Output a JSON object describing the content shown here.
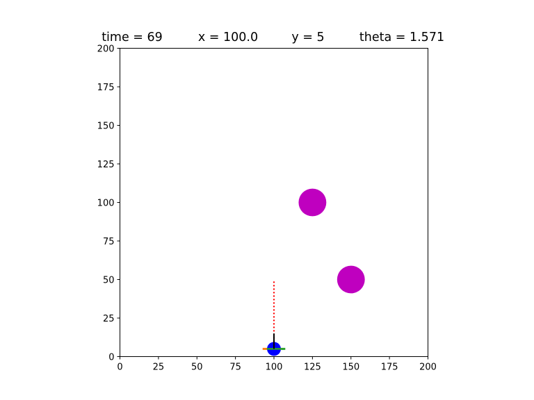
{
  "title": {
    "time": "time = 69",
    "x": "x = 100.0",
    "y": "y = 5",
    "theta": "theta = 1.571"
  },
  "chart_data": {
    "type": "scatter",
    "xlim": [
      0,
      200
    ],
    "ylim": [
      0,
      200
    ],
    "aspect": "equal",
    "grid": false,
    "x_ticks": [
      0,
      25,
      50,
      75,
      100,
      125,
      150,
      175,
      200
    ],
    "y_ticks": [
      0,
      25,
      50,
      75,
      100,
      125,
      150,
      175,
      200
    ],
    "obstacles": [
      {
        "x": 125,
        "y": 100,
        "r": 9,
        "color": "#bf00bf"
      },
      {
        "x": 150,
        "y": 50,
        "r": 9,
        "color": "#bf00bf"
      }
    ],
    "robot": {
      "x": 100,
      "y": 5,
      "r": 4.5,
      "theta": 1.571,
      "color": "#0000ff"
    },
    "sensor_ray": {
      "x0": 100,
      "y0": 5,
      "x1": 100,
      "y1": 50,
      "color": "#ff0000",
      "style": "dotted"
    },
    "heading_line": {
      "x0": 100,
      "y0": 5,
      "x1": 100,
      "y1": 15,
      "color": "#000000"
    },
    "axle_line": {
      "x0": 94,
      "y0": 5,
      "x1": 106,
      "y1": 5,
      "color": "#2ca02c"
    },
    "wheel_marks": [
      {
        "x": 94,
        "y": 5,
        "color": "#ff7f0e"
      },
      {
        "x": 106,
        "y": 5,
        "color": "#2ca02c"
      }
    ]
  }
}
